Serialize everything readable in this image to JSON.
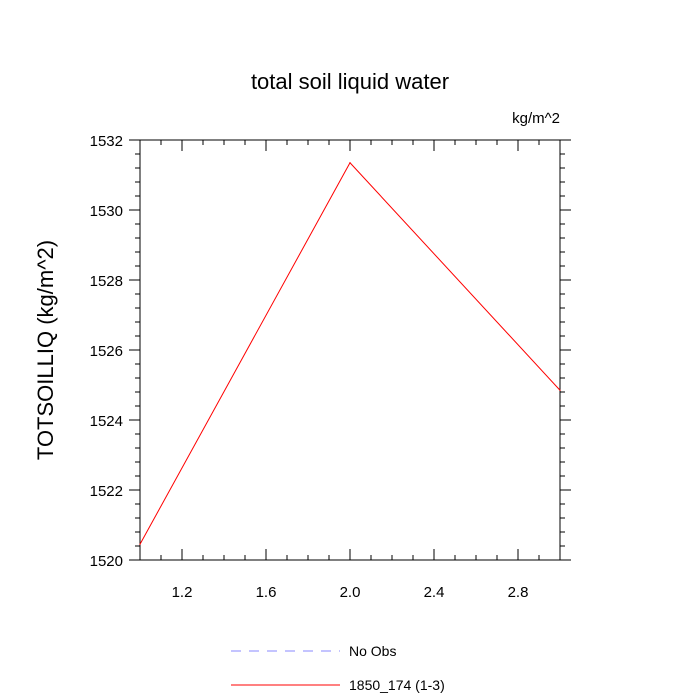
{
  "chart_data": {
    "type": "line",
    "title": "total soil liquid water",
    "units_label": "kg/m^2",
    "xlabel": "",
    "ylabel": "TOTSOILLIQ  (kg/m^2)",
    "xlim": [
      1.0,
      3.0
    ],
    "ylim": [
      1520,
      1532
    ],
    "x_ticks": [
      "1.2",
      "1.6",
      "2.0",
      "2.4",
      "2.8"
    ],
    "y_ticks": [
      "1520",
      "1522",
      "1524",
      "1526",
      "1528",
      "1530",
      "1532"
    ],
    "series": [
      {
        "name": "1850_174 (1-3)",
        "color": "#ff0000",
        "style": "solid",
        "x": [
          1,
          2,
          3
        ],
        "y": [
          1520.45,
          1531.35,
          1524.85
        ]
      }
    ],
    "legend": [
      {
        "label": "No Obs",
        "color": "#8888ff",
        "style": "dashed"
      },
      {
        "label": "1850_174 (1-3)",
        "color": "#ff0000",
        "style": "solid"
      }
    ],
    "legend_position": "bottom-center",
    "grid": false
  }
}
